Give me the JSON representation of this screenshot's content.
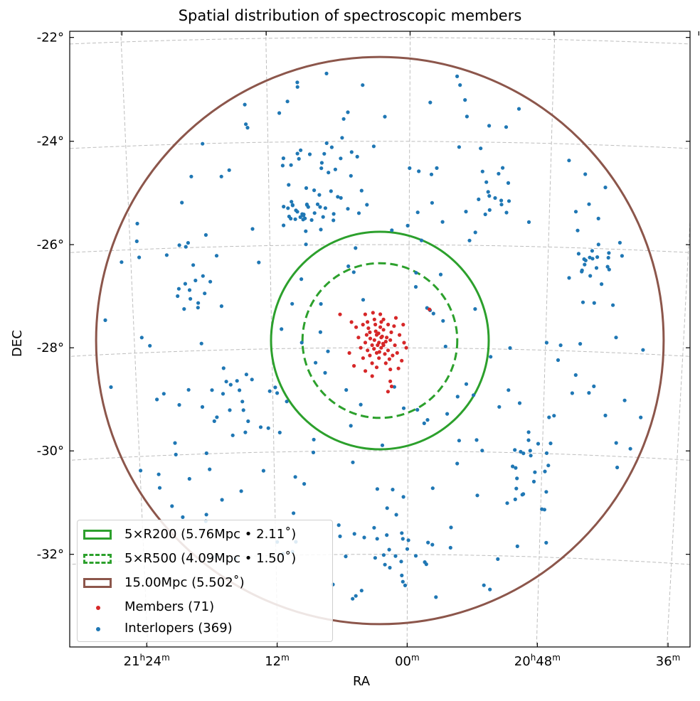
{
  "colors": {
    "r200": "#2ca02c",
    "r500": "#2ca02c",
    "outer": "#8c564b",
    "members": "#d62728",
    "interlopers": "#1f77b4",
    "grid": "#bdbdbd"
  },
  "chart_data": {
    "type": "scatter",
    "title": "Spatial distribution of spectroscopic members",
    "xlabel": "RA",
    "ylabel": "DEC",
    "center": {
      "ra_deg": 315.63,
      "dec_deg": -27.86
    },
    "dec_ticks": [
      {
        "value": -22,
        "label": "-22°"
      },
      {
        "value": -24,
        "label": "-24°"
      },
      {
        "value": -26,
        "label": "-26°"
      },
      {
        "value": -28,
        "label": "-28°"
      },
      {
        "value": -30,
        "label": "-30°"
      },
      {
        "value": -32,
        "label": "-32°"
      }
    ],
    "ra_ticks": [
      {
        "value_deg": 321.0,
        "h": "21",
        "h_unit": "h",
        "m": "24",
        "m_unit": "m"
      },
      {
        "value_deg": 318.0,
        "h": "",
        "h_unit": "",
        "m": "12",
        "m_unit": "m"
      },
      {
        "value_deg": 315.0,
        "h": "",
        "h_unit": "",
        "m": "00",
        "m_unit": "m"
      },
      {
        "value_deg": 312.0,
        "h": "20",
        "h_unit": "h",
        "m": "48",
        "m_unit": "m"
      },
      {
        "value_deg": 309.0,
        "h": "",
        "h_unit": "",
        "m": "36",
        "m_unit": "m"
      }
    ],
    "circles": [
      {
        "name": "5×R200 (5.76Mpc • 2.11˚)",
        "radius_deg": 2.11,
        "style": "solid",
        "color_key": "r200"
      },
      {
        "name": "5×R500 (4.09Mpc • 1.50˚)",
        "radius_deg": 1.5,
        "style": "dashed",
        "color_key": "r500"
      },
      {
        "name": "15.00Mpc (5.502˚)",
        "radius_deg": 5.502,
        "style": "solid",
        "color_key": "outer"
      }
    ],
    "series": [
      {
        "name": "Members (71)",
        "color_key": "members",
        "points": [
          [
            315.7,
            -27.75
          ],
          [
            315.6,
            -27.8
          ],
          [
            315.65,
            -27.9
          ],
          [
            315.55,
            -27.95
          ],
          [
            315.75,
            -27.85
          ],
          [
            315.5,
            -27.88
          ],
          [
            315.8,
            -27.95
          ],
          [
            315.45,
            -28.05
          ],
          [
            315.7,
            -28.1
          ],
          [
            315.6,
            -28.0
          ],
          [
            315.85,
            -27.7
          ],
          [
            315.4,
            -27.85
          ],
          [
            315.9,
            -28.05
          ],
          [
            315.55,
            -27.65
          ],
          [
            315.62,
            -27.6
          ],
          [
            315.73,
            -27.55
          ],
          [
            315.95,
            -27.9
          ],
          [
            315.35,
            -28.15
          ],
          [
            315.65,
            -28.2
          ],
          [
            315.5,
            -28.3
          ],
          [
            315.8,
            -28.3
          ],
          [
            315.3,
            -27.95
          ],
          [
            316.0,
            -28.2
          ],
          [
            315.75,
            -27.45
          ],
          [
            315.55,
            -27.45
          ],
          [
            315.2,
            -27.75
          ],
          [
            316.1,
            -27.8
          ],
          [
            315.9,
            -27.5
          ],
          [
            315.45,
            -27.55
          ],
          [
            315.68,
            -27.95
          ],
          [
            315.58,
            -27.78
          ],
          [
            315.72,
            -27.68
          ],
          [
            315.52,
            -28.12
          ],
          [
            315.85,
            -28.15
          ],
          [
            315.38,
            -27.7
          ],
          [
            316.05,
            -28.0
          ],
          [
            315.25,
            -28.1
          ],
          [
            315.62,
            -27.35
          ],
          [
            315.95,
            -28.45
          ],
          [
            315.15,
            -28.25
          ],
          [
            316.2,
            -28.35
          ],
          [
            315.1,
            -27.9
          ],
          [
            315.66,
            -27.72
          ],
          [
            315.56,
            -27.92
          ],
          [
            315.76,
            -28.02
          ],
          [
            315.48,
            -27.8
          ],
          [
            315.84,
            -27.82
          ],
          [
            315.64,
            -28.08
          ],
          [
            315.42,
            -28.22
          ],
          [
            315.88,
            -27.62
          ],
          [
            315.32,
            -27.58
          ],
          [
            316.15,
            -27.6
          ],
          [
            315.7,
            -28.38
          ],
          [
            315.22,
            -28.4
          ],
          [
            315.6,
            -27.5
          ],
          [
            316.0,
            -27.55
          ],
          [
            315.28,
            -27.42
          ],
          [
            315.78,
            -27.32
          ],
          [
            315.05,
            -28.0
          ],
          [
            316.3,
            -28.1
          ],
          [
            316.25,
            -27.5
          ],
          [
            315.95,
            -27.35
          ],
          [
            315.4,
            -28.42
          ],
          [
            315.12,
            -27.55
          ],
          [
            315.8,
            -28.55
          ],
          [
            315.92,
            -27.75
          ],
          [
            314.55,
            -27.25
          ],
          [
            316.5,
            -27.35
          ],
          [
            315.4,
            -28.65
          ],
          [
            315.37,
            -28.75
          ],
          [
            315.45,
            -28.85
          ]
        ]
      },
      {
        "name": "Interlopers (369)",
        "color_key": "interlopers",
        "count": 369
      }
    ]
  },
  "legend": {
    "entries": [
      "5×R200 (5.76Mpc • 2.11˚)",
      "5×R500 (4.09Mpc • 1.50˚)",
      "15.00Mpc (5.502˚)",
      "Members (71)",
      "Interlopers (369)"
    ]
  }
}
